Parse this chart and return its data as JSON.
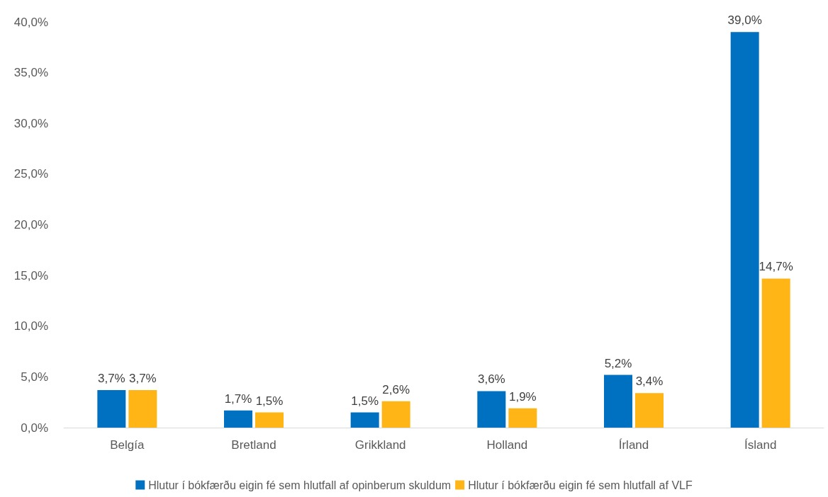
{
  "chart_data": {
    "type": "bar",
    "categories": [
      "Belgía",
      "Bretland",
      "Grikkland",
      "Holland",
      "Írland",
      "Ísland"
    ],
    "series": [
      {
        "name": "Hlutur í bókfærðu eigin fé sem hlutfall af opinberum skuldum",
        "color": "#0070c0",
        "values": [
          3.7,
          1.7,
          1.5,
          3.6,
          5.2,
          39.0
        ],
        "value_labels": [
          "3,7%",
          "1,7%",
          "1,5%",
          "3,6%",
          "5,2%",
          "39,0%"
        ]
      },
      {
        "name": "Hlutur í bókfærðu eigin fé sem hlutfall af VLF",
        "color": "#ffb515",
        "values": [
          3.7,
          1.5,
          2.6,
          1.9,
          3.4,
          14.7
        ],
        "value_labels": [
          "3,7%",
          "1,5%",
          "2,6%",
          "1,9%",
          "3,4%",
          "14,7%"
        ]
      }
    ],
    "ylim": [
      0,
      40
    ],
    "yticks": [
      {
        "value": 0,
        "label": "0,0%"
      },
      {
        "value": 5,
        "label": "5,0%"
      },
      {
        "value": 10,
        "label": "10,0%"
      },
      {
        "value": 15,
        "label": "15,0%"
      },
      {
        "value": 20,
        "label": "20,0%"
      },
      {
        "value": 25,
        "label": "25,0%"
      },
      {
        "value": 30,
        "label": "30,0%"
      },
      {
        "value": 35,
        "label": "35,0%"
      },
      {
        "value": 40,
        "label": "40,0%"
      }
    ],
    "grid": false,
    "legend": "bottom"
  }
}
